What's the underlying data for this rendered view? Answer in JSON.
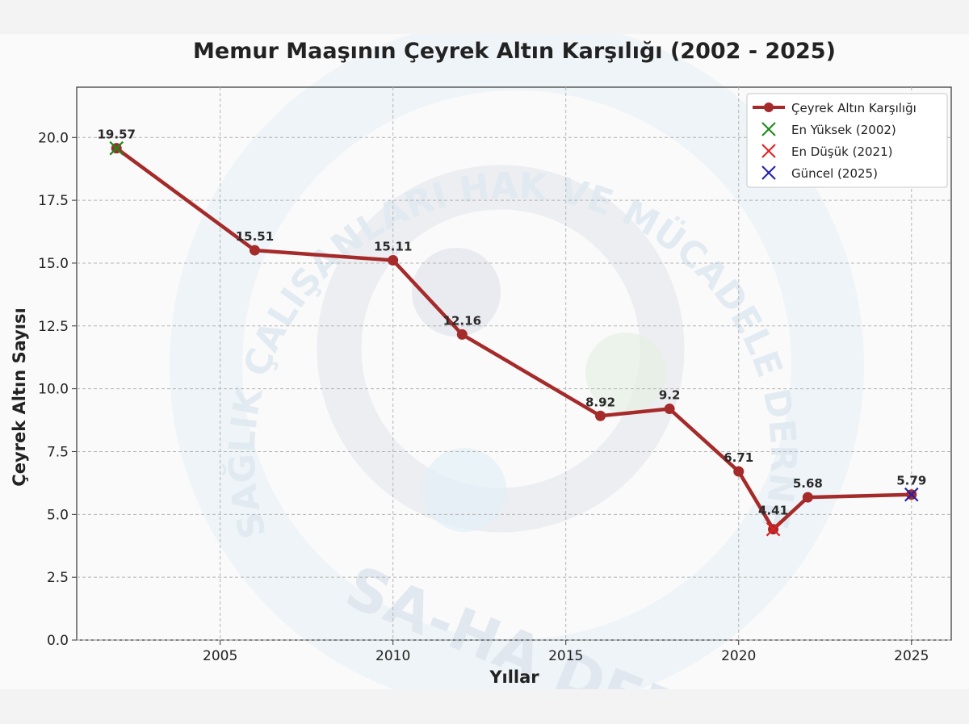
{
  "chart_data": {
    "type": "line",
    "title": "Memur Maaşının Çeyrek Altın Karşılığı (2002 - 2025)",
    "xlabel": "Yıllar",
    "ylabel": "Çeyrek Altın Sayısı",
    "xlim": [
      2000.85,
      2026.15
    ],
    "ylim": [
      0,
      22
    ],
    "xticks": [
      2005,
      2010,
      2015,
      2020,
      2025
    ],
    "yticks": [
      0.0,
      2.5,
      5.0,
      7.5,
      10.0,
      12.5,
      15.0,
      17.5,
      20.0
    ],
    "grid": true,
    "legend_position": "top-right",
    "series": [
      {
        "name": "Çeyrek Altın Karşılığı",
        "color": "#a52a2a",
        "x": [
          2002,
          2006,
          2010,
          2012,
          2016,
          2018,
          2020,
          2021,
          2022,
          2025
        ],
        "y": [
          19.57,
          15.51,
          15.11,
          12.16,
          8.92,
          9.2,
          6.71,
          4.41,
          5.68,
          5.79
        ],
        "labels": [
          "19.57",
          "15.51",
          "15.11",
          "12.16",
          "8.92",
          "9.2",
          "6.71",
          "4.41",
          "5.68",
          "5.79"
        ]
      }
    ],
    "markers": [
      {
        "name": "En Yüksek (2002)",
        "x": 2002,
        "y": 19.57,
        "color": "#1a8a1a",
        "symbol": "x"
      },
      {
        "name": "En Düşük (2021)",
        "x": 2021,
        "y": 4.41,
        "color": "#e02020",
        "symbol": "x"
      },
      {
        "name": "Güncel (2025)",
        "x": 2025,
        "y": 5.79,
        "color": "#2020b0",
        "symbol": "x"
      }
    ]
  },
  "watermark": {
    "ring_text": "SAĞLIK ÇALIŞANLARI HAK VE MÜCADELE DERNEĞİ",
    "bottom_text": "SA-HA DER"
  }
}
